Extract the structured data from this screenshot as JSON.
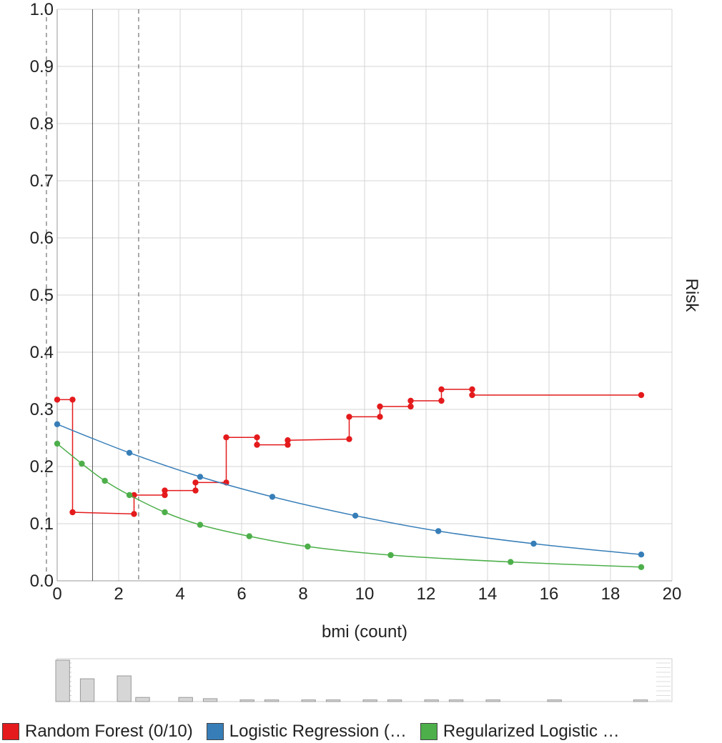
{
  "chart_data": {
    "type": "line",
    "xlabel": "bmi (count)",
    "ylabel": "Risk",
    "xlim": [
      0,
      20
    ],
    "ylim": [
      0,
      1
    ],
    "x_ticks": [
      "0",
      "2",
      "4",
      "6",
      "8",
      "10",
      "12",
      "14",
      "16",
      "18",
      "20"
    ],
    "y_ticks": [
      "0.0",
      "0.1",
      "0.2",
      "0.3",
      "0.4",
      "0.5",
      "0.6",
      "0.7",
      "0.8",
      "0.9",
      "1.0"
    ],
    "grid": true,
    "reference_lines": {
      "solid": [
        1.15
      ],
      "dashed": [
        -0.35,
        2.65
      ]
    },
    "series": [
      {
        "name": "Random Forest (0/10)",
        "color": "#e41a1c",
        "step": true,
        "points": [
          [
            0,
            0.317
          ],
          [
            0.5,
            0.317
          ],
          [
            0.5,
            0.12
          ],
          [
            2.5,
            0.117
          ],
          [
            2.5,
            0.15
          ],
          [
            3.5,
            0.15
          ],
          [
            3.5,
            0.158
          ],
          [
            4.5,
            0.158
          ],
          [
            4.5,
            0.172
          ],
          [
            5.5,
            0.172
          ],
          [
            5.5,
            0.251
          ],
          [
            6.5,
            0.251
          ],
          [
            6.5,
            0.238
          ],
          [
            7.5,
            0.238
          ],
          [
            7.5,
            0.246
          ],
          [
            9.5,
            0.248
          ],
          [
            9.5,
            0.287
          ],
          [
            10.5,
            0.287
          ],
          [
            10.5,
            0.305
          ],
          [
            11.5,
            0.305
          ],
          [
            11.5,
            0.315
          ],
          [
            12.5,
            0.315
          ],
          [
            12.5,
            0.335
          ],
          [
            13.5,
            0.335
          ],
          [
            13.5,
            0.325
          ],
          [
            19,
            0.325
          ]
        ]
      },
      {
        "name": "Logistic Regression (…",
        "color": "#377eb8",
        "points": [
          [
            0,
            0.274
          ],
          [
            2.35,
            0.224
          ],
          [
            4.65,
            0.182
          ],
          [
            7,
            0.147
          ],
          [
            9.7,
            0.114
          ],
          [
            12.4,
            0.087
          ],
          [
            15.5,
            0.065
          ],
          [
            19,
            0.046
          ]
        ]
      },
      {
        "name": "Regularized Logistic …",
        "color": "#4daf4a",
        "points": [
          [
            0,
            0.24
          ],
          [
            0.8,
            0.205
          ],
          [
            1.55,
            0.175
          ],
          [
            2.35,
            0.15
          ],
          [
            3.5,
            0.12
          ],
          [
            4.65,
            0.098
          ],
          [
            6.25,
            0.078
          ],
          [
            8.15,
            0.06
          ],
          [
            10.85,
            0.045
          ],
          [
            14.75,
            0.033
          ],
          [
            19,
            0.024
          ]
        ]
      }
    ],
    "histogram": {
      "bins": [
        {
          "x": 0,
          "value": 1.0
        },
        {
          "x": 0.8,
          "value": 0.55
        },
        {
          "x": 2,
          "value": 0.62
        },
        {
          "x": 2.6,
          "value": 0.1
        },
        {
          "x": 4,
          "value": 0.1
        },
        {
          "x": 4.8,
          "value": 0.07
        },
        {
          "x": 6,
          "value": 0.04
        },
        {
          "x": 6.8,
          "value": 0.04
        },
        {
          "x": 8,
          "value": 0.04
        },
        {
          "x": 8.8,
          "value": 0.04
        },
        {
          "x": 10,
          "value": 0.04
        },
        {
          "x": 10.8,
          "value": 0.04
        },
        {
          "x": 12,
          "value": 0.04
        },
        {
          "x": 12.8,
          "value": 0.04
        },
        {
          "x": 14,
          "value": 0.04
        },
        {
          "x": 16,
          "value": 0.04
        },
        {
          "x": 18.8,
          "value": 0.04
        }
      ]
    }
  }
}
